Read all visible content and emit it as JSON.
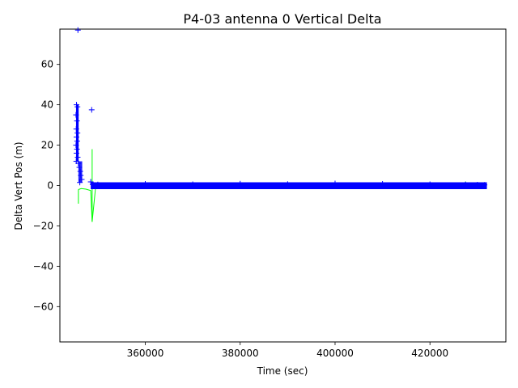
{
  "chart_data": {
    "type": "scatter",
    "title": "P4-03 antenna 0 Vertical Delta",
    "xlabel": "Time (sec)",
    "ylabel": "Delta Vert Pos (m)",
    "xlim": [
      342000,
      436000
    ],
    "ylim": [
      -77.5,
      77.5
    ],
    "x_ticks": [
      360000,
      380000,
      400000,
      420000
    ],
    "y_ticks": [
      -60,
      -40,
      -20,
      0,
      20,
      40,
      60
    ],
    "y_tick_labels": [
      "−60",
      "−40",
      "−20",
      "0",
      "20",
      "40",
      "60"
    ],
    "grid": false,
    "colors": {
      "points": "#0000ff",
      "envelope": "#00ff00"
    },
    "series": [
      {
        "marker": "plus",
        "color": "#0000ff",
        "points": [
          [
            345800,
            77
          ],
          [
            348700,
            37.5
          ],
          [
            345500,
            40
          ],
          [
            345700,
            39
          ],
          [
            345400,
            35
          ],
          [
            345600,
            32
          ],
          [
            345450,
            28
          ],
          [
            345700,
            26
          ],
          [
            345500,
            24
          ],
          [
            345650,
            22
          ],
          [
            345400,
            20
          ],
          [
            345600,
            18
          ],
          [
            345500,
            16
          ],
          [
            345750,
            14
          ],
          [
            345450,
            12
          ],
          [
            345900,
            11
          ],
          [
            346100,
            9
          ],
          [
            346300,
            7
          ],
          [
            346400,
            5
          ],
          [
            346600,
            3
          ],
          [
            346200,
            1.5
          ],
          [
            348500,
            1.8
          ],
          [
            348900,
            0.5
          ],
          [
            350000,
            0.5
          ],
          [
            360000,
            0.8
          ],
          [
            370000,
            0.6
          ],
          [
            380000,
            0.9
          ],
          [
            390000,
            0.7
          ],
          [
            400000,
            1
          ],
          [
            410000,
            0.8
          ],
          [
            420000,
            0.6
          ],
          [
            427500,
            0.5
          ],
          [
            430000,
            0.4
          ],
          [
            431500,
            0.3
          ]
        ]
      },
      {
        "type": "dense_band",
        "color": "#0000ff",
        "x": [
          348500,
          432000
        ],
        "ymin": -1.8,
        "ymax": 1.6
      },
      {
        "type": "line",
        "color": "#00ff00",
        "x": [
          345900,
          346500,
          347500,
          348500,
          348800,
          349500,
          350000,
          360000,
          380000,
          400000,
          420000,
          427500,
          432000
        ],
        "y": [
          -2,
          -1.5,
          -1.8,
          -2.5,
          -18,
          -1.5,
          -1.2,
          -1,
          -1,
          -1.2,
          -1,
          -0.8,
          -0.8
        ]
      },
      {
        "type": "spikes",
        "color": "#00ff00",
        "segments": [
          {
            "x": 345900,
            "y": [
              -9,
              -2
            ]
          },
          {
            "x": 348800,
            "y": [
              -18,
              18
            ]
          },
          {
            "x": 427500,
            "y": [
              -1.5,
              2
            ]
          }
        ]
      }
    ]
  }
}
